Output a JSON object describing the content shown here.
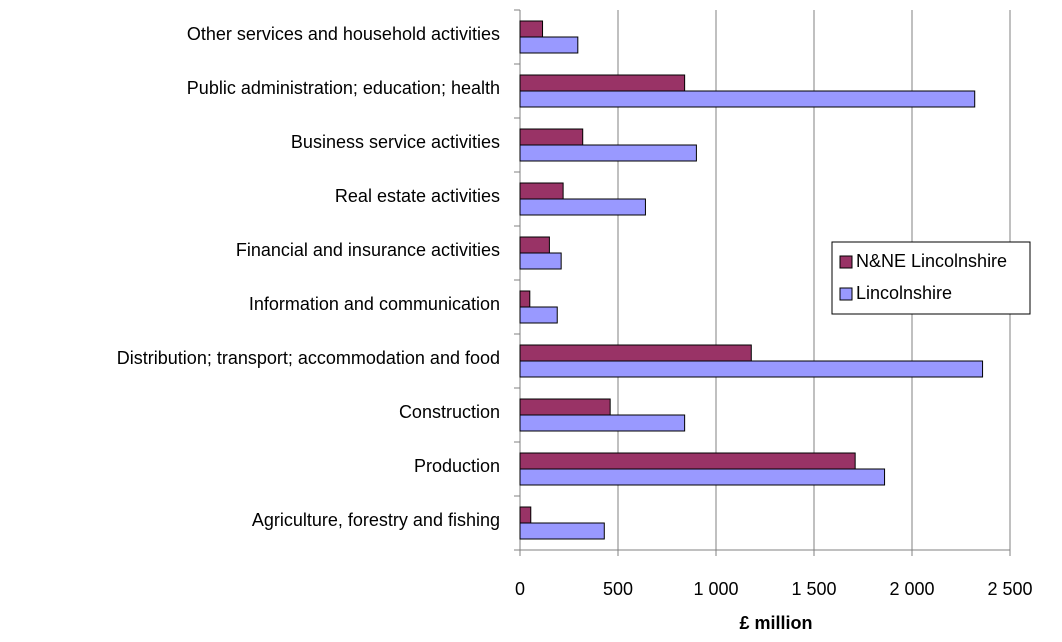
{
  "chart_data": {
    "type": "bar",
    "orientation": "horizontal",
    "x_label": "£ million",
    "categories": [
      "Agriculture, forestry and fishing",
      "Production",
      "Construction",
      "Distribution; transport; accommodation and food",
      "Information and communication",
      "Financial and insurance activities",
      "Real estate activities",
      "Business service activities",
      "Public administration; education; health",
      "Other services and household activities"
    ],
    "series": [
      {
        "name": "N&NE Lincolnshire",
        "color": "#993366",
        "values": [
          55,
          1710,
          460,
          1180,
          50,
          150,
          220,
          320,
          840,
          115
        ]
      },
      {
        "name": "Lincolnshire",
        "color": "#9999ff",
        "values": [
          430,
          1860,
          840,
          2360,
          190,
          210,
          640,
          900,
          2320,
          295
        ]
      }
    ],
    "xlim": [
      0,
      2500
    ],
    "xticks": [
      0,
      500,
      {
        "value": 1000,
        "label": "1 000"
      },
      {
        "value": 1500,
        "label": "1 500"
      },
      {
        "value": 2000,
        "label": "2 000"
      },
      {
        "value": 2500,
        "label": "2 500"
      }
    ],
    "grid": true,
    "legend": "right"
  }
}
